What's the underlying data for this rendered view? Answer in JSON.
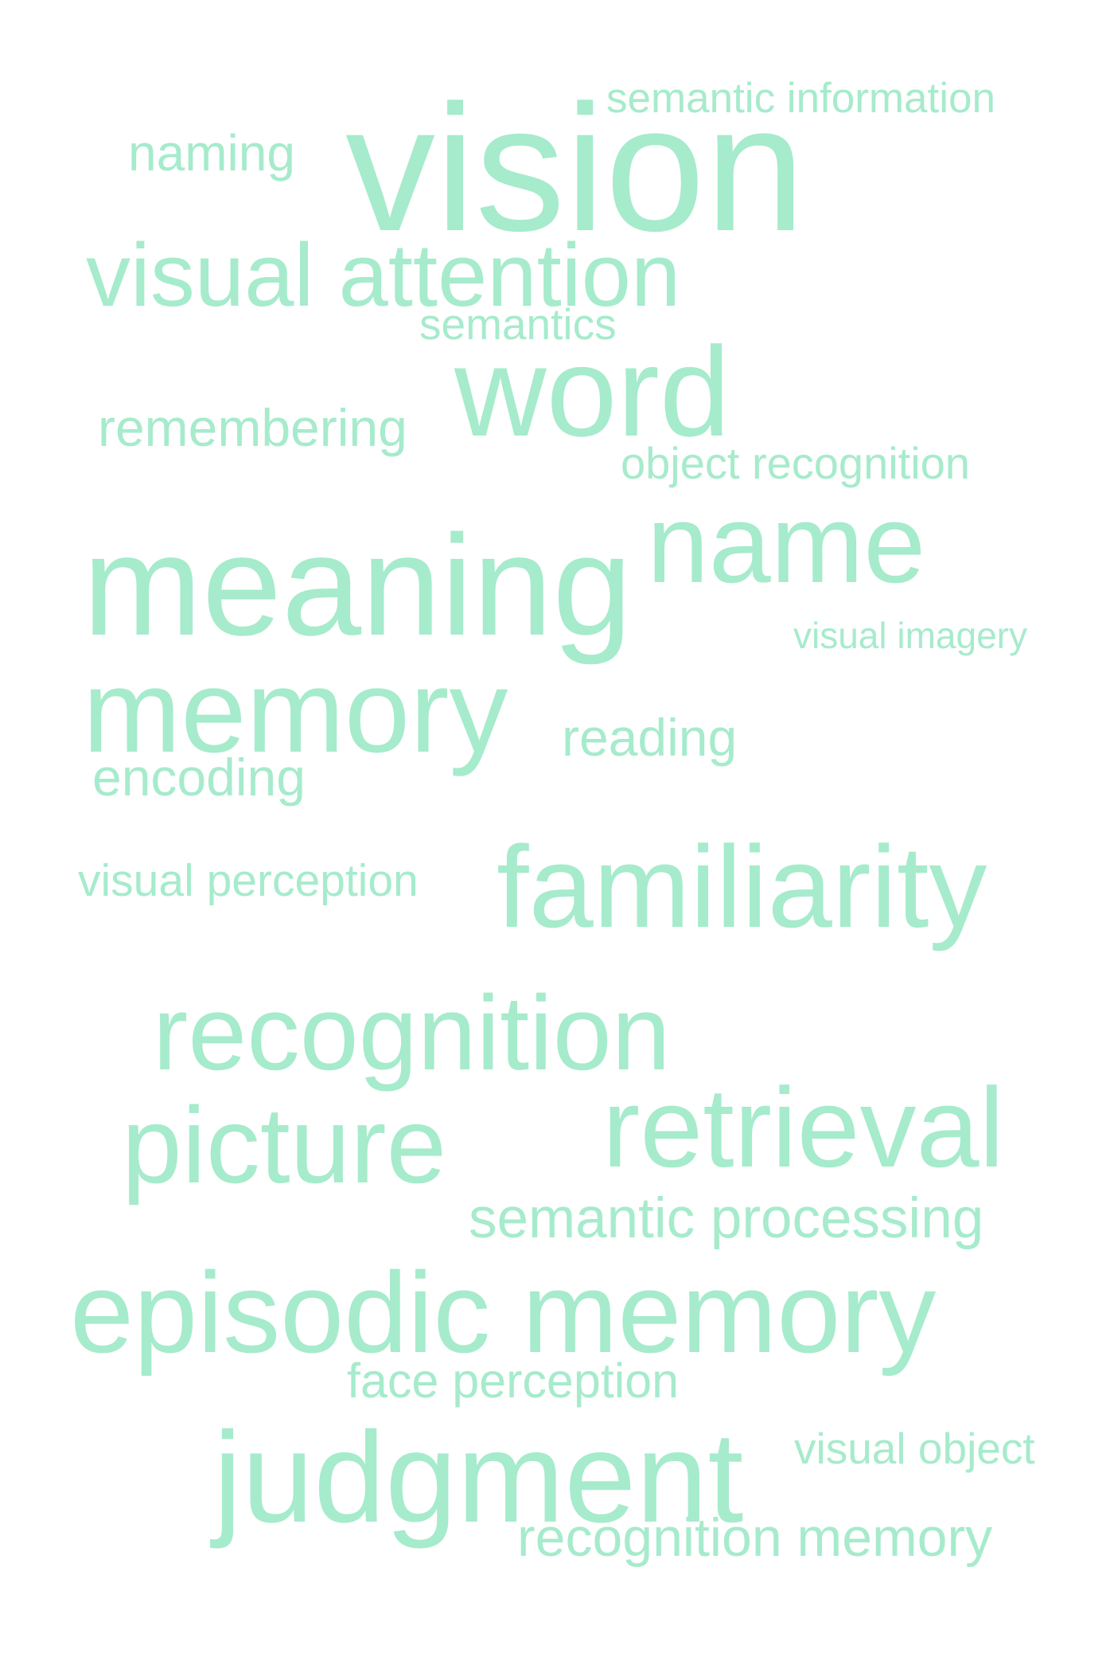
{
  "colors": {
    "word_color": "#a6ebcc",
    "background": "#ffffff"
  },
  "words": [
    "semantic information",
    "naming",
    "vision",
    "visual attention",
    "semantics",
    "word",
    "remembering",
    "object recognition",
    "name",
    "meaning",
    "visual imagery",
    "memory",
    "reading",
    "encoding",
    "visual perception",
    "familiarity",
    "recognition",
    "picture",
    "retrieval",
    "semantic processing",
    "episodic memory",
    "face perception",
    "judgment",
    "visual object",
    "recognition memory"
  ]
}
